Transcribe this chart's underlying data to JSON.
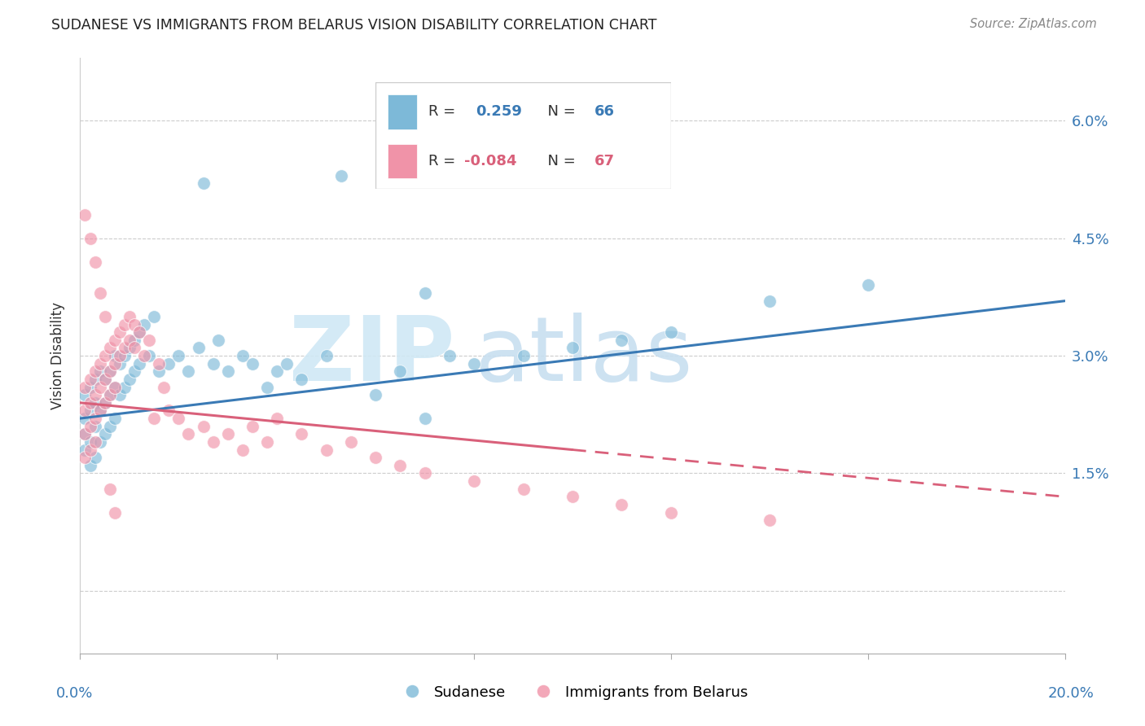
{
  "title": "SUDANESE VS IMMIGRANTS FROM BELARUS VISION DISABILITY CORRELATION CHART",
  "source": "Source: ZipAtlas.com",
  "ylabel": "Vision Disability",
  "xlim": [
    0.0,
    0.2
  ],
  "ylim": [
    -0.008,
    0.068
  ],
  "ytick_vals": [
    0.0,
    0.015,
    0.03,
    0.045,
    0.06
  ],
  "ytick_labels": [
    "",
    "1.5%",
    "3.0%",
    "4.5%",
    "6.0%"
  ],
  "color_blue": "#7db9d8",
  "color_pink": "#f093a8",
  "color_line_blue": "#3a7ab5",
  "color_line_pink": "#d9607a",
  "watermark_zip_color": "#d0e8f5",
  "watermark_atlas_color": "#c8dff0",
  "sud_line_x0": 0.0,
  "sud_line_y0": 0.022,
  "sud_line_x1": 0.2,
  "sud_line_y1": 0.037,
  "bel_line_x0": 0.0,
  "bel_line_y0": 0.024,
  "bel_line_x1": 0.2,
  "bel_line_y1": 0.012,
  "legend_r1_text": "R =  0.259   N = 66",
  "legend_r2_text": "R = -0.084   N = 67",
  "legend_r1_color": "#3a7ab5",
  "legend_r2_color": "#d9607a",
  "sud_x": [
    0.001,
    0.001,
    0.001,
    0.001,
    0.002,
    0.002,
    0.002,
    0.002,
    0.003,
    0.003,
    0.003,
    0.003,
    0.004,
    0.004,
    0.004,
    0.005,
    0.005,
    0.005,
    0.006,
    0.006,
    0.006,
    0.007,
    0.007,
    0.007,
    0.008,
    0.008,
    0.009,
    0.009,
    0.01,
    0.01,
    0.011,
    0.011,
    0.012,
    0.012,
    0.013,
    0.014,
    0.015,
    0.016,
    0.018,
    0.02,
    0.022,
    0.024,
    0.025,
    0.027,
    0.028,
    0.03,
    0.033,
    0.035,
    0.038,
    0.04,
    0.042,
    0.045,
    0.05,
    0.053,
    0.06,
    0.065,
    0.07,
    0.075,
    0.08,
    0.09,
    0.1,
    0.11,
    0.12,
    0.14,
    0.16,
    0.07
  ],
  "sud_y": [
    0.025,
    0.022,
    0.02,
    0.018,
    0.026,
    0.023,
    0.019,
    0.016,
    0.027,
    0.024,
    0.021,
    0.017,
    0.028,
    0.023,
    0.019,
    0.027,
    0.024,
    0.02,
    0.028,
    0.025,
    0.021,
    0.03,
    0.026,
    0.022,
    0.029,
    0.025,
    0.03,
    0.026,
    0.031,
    0.027,
    0.032,
    0.028,
    0.033,
    0.029,
    0.034,
    0.03,
    0.035,
    0.028,
    0.029,
    0.03,
    0.028,
    0.031,
    0.052,
    0.029,
    0.032,
    0.028,
    0.03,
    0.029,
    0.026,
    0.028,
    0.029,
    0.027,
    0.03,
    0.053,
    0.025,
    0.028,
    0.022,
    0.03,
    0.029,
    0.03,
    0.031,
    0.032,
    0.033,
    0.037,
    0.039,
    0.038
  ],
  "bel_x": [
    0.001,
    0.001,
    0.001,
    0.001,
    0.002,
    0.002,
    0.002,
    0.002,
    0.003,
    0.003,
    0.003,
    0.003,
    0.004,
    0.004,
    0.004,
    0.005,
    0.005,
    0.005,
    0.006,
    0.006,
    0.006,
    0.007,
    0.007,
    0.007,
    0.008,
    0.008,
    0.009,
    0.009,
    0.01,
    0.01,
    0.011,
    0.011,
    0.012,
    0.013,
    0.014,
    0.015,
    0.016,
    0.017,
    0.018,
    0.02,
    0.022,
    0.025,
    0.027,
    0.03,
    0.033,
    0.035,
    0.038,
    0.04,
    0.045,
    0.05,
    0.055,
    0.06,
    0.065,
    0.07,
    0.08,
    0.09,
    0.1,
    0.11,
    0.12,
    0.14,
    0.001,
    0.002,
    0.003,
    0.004,
    0.005,
    0.006,
    0.007
  ],
  "bel_y": [
    0.026,
    0.023,
    0.02,
    0.017,
    0.027,
    0.024,
    0.021,
    0.018,
    0.028,
    0.025,
    0.022,
    0.019,
    0.029,
    0.026,
    0.023,
    0.03,
    0.027,
    0.024,
    0.031,
    0.028,
    0.025,
    0.032,
    0.029,
    0.026,
    0.033,
    0.03,
    0.034,
    0.031,
    0.035,
    0.032,
    0.034,
    0.031,
    0.033,
    0.03,
    0.032,
    0.022,
    0.029,
    0.026,
    0.023,
    0.022,
    0.02,
    0.021,
    0.019,
    0.02,
    0.018,
    0.021,
    0.019,
    0.022,
    0.02,
    0.018,
    0.019,
    0.017,
    0.016,
    0.015,
    0.014,
    0.013,
    0.012,
    0.011,
    0.01,
    0.009,
    0.048,
    0.045,
    0.042,
    0.038,
    0.035,
    0.013,
    0.01
  ]
}
